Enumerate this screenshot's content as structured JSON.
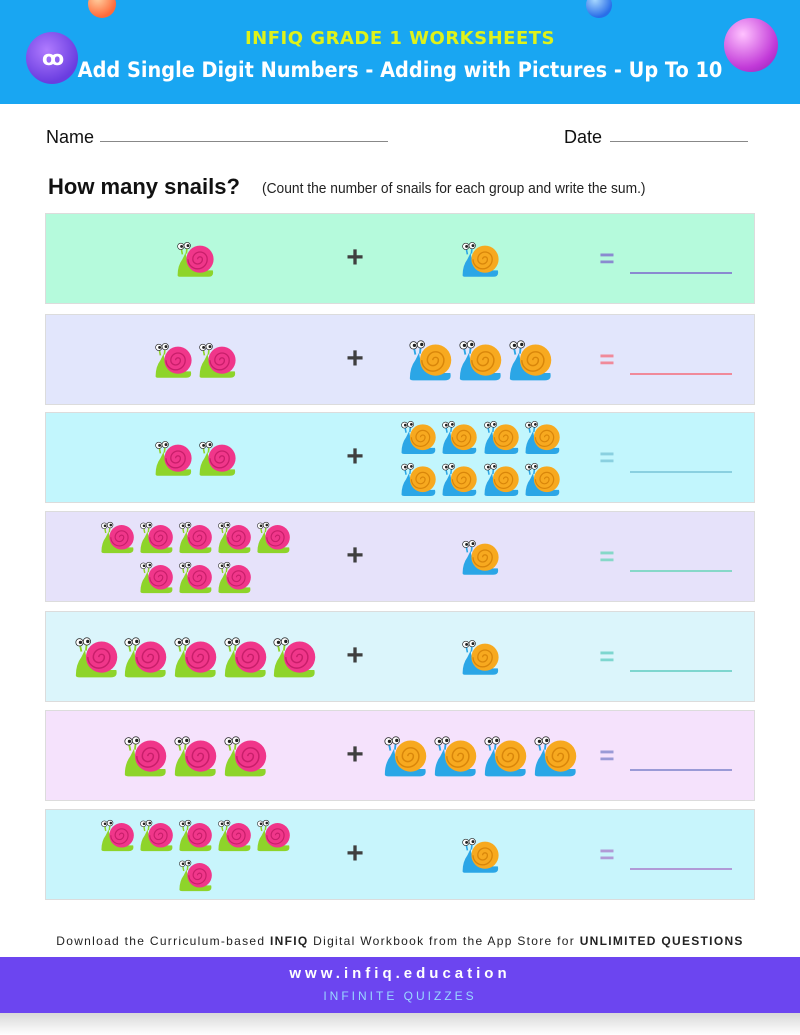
{
  "header": {
    "brand": "INFIQ GRADE 1 WORKSHEETS",
    "title": "Add Single Digit Numbers - Adding with Pictures - Up To 10",
    "logo_text": "ꝏ"
  },
  "fields": {
    "name_label": "Name",
    "date_label": "Date"
  },
  "question": {
    "title": "How many snails?",
    "instruction": "(Count the number of snails for each group and write the sum.)"
  },
  "operators": {
    "plus": "+",
    "equals": "="
  },
  "rows": [
    {
      "pink": 1,
      "blue": 1,
      "bg": "#b5fadc",
      "equals_color": "#8a8ad0"
    },
    {
      "pink": 2,
      "blue": 3,
      "bg": "#e2e6fc",
      "equals_color": "#f08a9a"
    },
    {
      "pink": 2,
      "blue": 8,
      "bg": "#c2f6fd",
      "equals_color": "#8ad0e0"
    },
    {
      "pink": 8,
      "blue": 1,
      "bg": "#e6e2fa",
      "equals_color": "#86d8c8"
    },
    {
      "pink": 5,
      "blue": 1,
      "bg": "#dbf5fb",
      "equals_color": "#7ed6cf"
    },
    {
      "pink": 3,
      "blue": 4,
      "bg": "#f5e2fc",
      "equals_color": "#9a9ad6"
    },
    {
      "pink": 6,
      "blue": 1,
      "bg": "#c8f5fc",
      "equals_color": "#b09ad6"
    }
  ],
  "colors": {
    "pink_shell": "#f0368a",
    "pink_body": "#8ed42a",
    "blue_shell": "#f7a91f",
    "blue_body": "#2ba6e6"
  },
  "footer": {
    "note_prefix": "Download the Curriculum-based ",
    "note_brand": "INFIQ",
    "note_middle": " Digital Workbook from the App Store for ",
    "note_bold": "UNLIMITED QUESTIONS",
    "url": "www.infiq.education",
    "tagline": "INFINITE QUIZZES"
  }
}
